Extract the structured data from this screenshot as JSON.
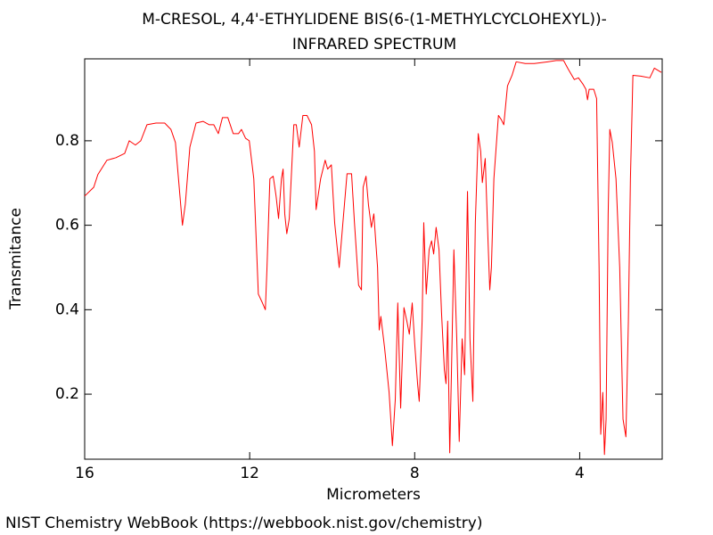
{
  "chart_data": {
    "type": "line",
    "title": [
      "M-CRESOL, 4,4'-ETHYLIDENE BIS(6-(1-METHYLCYCLOHEXYL))-",
      "INFRARED SPECTRUM"
    ],
    "x_label": "Micrometers",
    "y_label": "Transmitance",
    "color": "#ff0000",
    "xlim": [
      16,
      2
    ],
    "ylim": [
      0.046,
      0.994
    ],
    "xticks": [
      16,
      12,
      8,
      4
    ],
    "yticks": [
      0.2,
      0.4,
      0.6,
      0.8
    ],
    "x": [
      16.0,
      15.78,
      15.68,
      15.46,
      15.24,
      15.03,
      14.92,
      14.77,
      14.64,
      14.49,
      14.27,
      14.06,
      13.91,
      13.8,
      13.69,
      13.63,
      13.56,
      13.45,
      13.3,
      13.13,
      12.98,
      12.87,
      12.76,
      12.66,
      12.53,
      12.4,
      12.27,
      12.2,
      12.1,
      12.01,
      11.9,
      11.79,
      11.69,
      11.62,
      11.58,
      11.51,
      11.43,
      11.36,
      11.3,
      11.23,
      11.19,
      11.15,
      11.1,
      11.04,
      10.93,
      10.87,
      10.8,
      10.71,
      10.61,
      10.5,
      10.43,
      10.39,
      10.28,
      10.17,
      10.11,
      10.02,
      9.94,
      9.83,
      9.74,
      9.64,
      9.53,
      9.46,
      9.36,
      9.29,
      9.25,
      9.18,
      9.12,
      9.05,
      8.99,
      8.9,
      8.86,
      8.82,
      8.73,
      8.62,
      8.54,
      8.47,
      8.41,
      8.34,
      8.26,
      8.19,
      8.13,
      8.06,
      8.0,
      7.93,
      7.89,
      7.82,
      7.78,
      7.72,
      7.65,
      7.59,
      7.54,
      7.48,
      7.41,
      7.35,
      7.28,
      7.24,
      7.2,
      7.15,
      7.11,
      7.05,
      6.98,
      6.92,
      6.85,
      6.79,
      6.72,
      6.66,
      6.59,
      6.53,
      6.46,
      6.4,
      6.36,
      6.29,
      6.23,
      6.18,
      6.14,
      6.08,
      5.97,
      5.9,
      5.84,
      5.75,
      5.64,
      5.54,
      5.32,
      5.1,
      4.78,
      4.57,
      4.39,
      4.28,
      4.13,
      4.03,
      3.92,
      3.85,
      3.81,
      3.77,
      3.66,
      3.59,
      3.53,
      3.49,
      3.44,
      3.4,
      3.36,
      3.31,
      3.27,
      3.21,
      3.12,
      3.03,
      2.95,
      2.88,
      2.82,
      2.77,
      2.71,
      2.52,
      2.3,
      2.19,
      2.02
    ],
    "values": [
      0.669,
      0.69,
      0.72,
      0.754,
      0.76,
      0.77,
      0.8,
      0.79,
      0.8,
      0.838,
      0.842,
      0.842,
      0.827,
      0.796,
      0.669,
      0.6,
      0.65,
      0.785,
      0.842,
      0.846,
      0.838,
      0.838,
      0.817,
      0.855,
      0.855,
      0.817,
      0.817,
      0.827,
      0.806,
      0.8,
      0.71,
      0.437,
      0.416,
      0.4,
      0.5,
      0.71,
      0.716,
      0.669,
      0.616,
      0.71,
      0.733,
      0.627,
      0.58,
      0.616,
      0.838,
      0.838,
      0.785,
      0.86,
      0.86,
      0.838,
      0.775,
      0.637,
      0.71,
      0.754,
      0.733,
      0.743,
      0.606,
      0.5,
      0.606,
      0.722,
      0.722,
      0.606,
      0.458,
      0.447,
      0.69,
      0.716,
      0.648,
      0.595,
      0.627,
      0.5,
      0.352,
      0.384,
      0.31,
      0.204,
      0.078,
      0.188,
      0.416,
      0.167,
      0.405,
      0.373,
      0.342,
      0.416,
      0.32,
      0.225,
      0.183,
      0.373,
      0.606,
      0.437,
      0.542,
      0.563,
      0.532,
      0.595,
      0.542,
      0.394,
      0.257,
      0.225,
      0.373,
      0.061,
      0.246,
      0.542,
      0.331,
      0.088,
      0.331,
      0.246,
      0.68,
      0.331,
      0.183,
      0.606,
      0.817,
      0.775,
      0.701,
      0.758,
      0.585,
      0.447,
      0.5,
      0.71,
      0.86,
      0.85,
      0.838,
      0.93,
      0.955,
      0.987,
      0.983,
      0.983,
      0.987,
      0.99,
      0.99,
      0.97,
      0.945,
      0.949,
      0.934,
      0.922,
      0.897,
      0.922,
      0.922,
      0.9,
      0.5,
      0.105,
      0.204,
      0.057,
      0.141,
      0.627,
      0.827,
      0.796,
      0.71,
      0.5,
      0.141,
      0.099,
      0.373,
      0.71,
      0.955,
      0.953,
      0.949,
      0.972,
      0.962
    ]
  },
  "footer": "NIST Chemistry WebBook (https://webbook.nist.gov/chemistry)"
}
